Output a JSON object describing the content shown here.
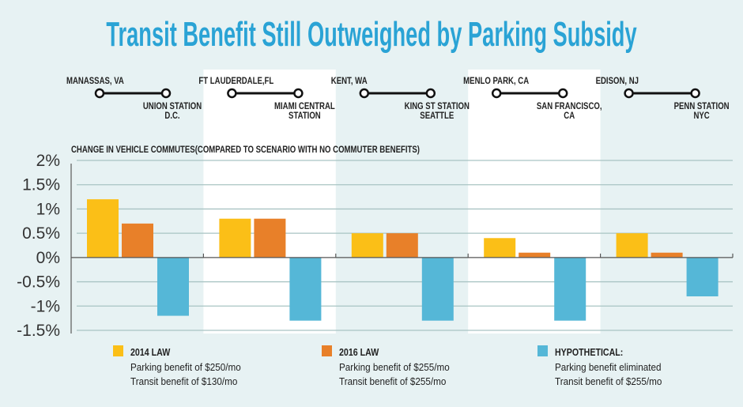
{
  "chart_data": {
    "type": "bar",
    "title": "Transit Benefit Still Outweighed by Parking Subsidy",
    "subtitle": "CHANGE IN VEHICLE COMMUTES(COMPARED TO SCENARIO WITH NO COMMUTER BENEFITS)",
    "ylim": [
      -1.5,
      2
    ],
    "y_ticks": [
      "2%",
      "1.5%",
      "1%",
      "0.5%",
      "0%",
      "-0.5%",
      "-1%",
      "-1.5%"
    ],
    "y_tick_values": [
      2,
      1.5,
      1,
      0.5,
      0,
      -0.5,
      -1,
      -1.5
    ],
    "grid": true,
    "categories": [
      {
        "origin": "MANASSAS, VA",
        "destination": [
          "UNION STATION",
          "D.C."
        ]
      },
      {
        "origin": "FT LAUDERDALE,FL",
        "destination": [
          "MIAMI CENTRAL",
          "STATION"
        ]
      },
      {
        "origin": "KENT, WA",
        "destination": [
          "KING ST STATION",
          "SEATTLE"
        ]
      },
      {
        "origin": "MENLO PARK, CA",
        "destination": [
          "SAN FRANCISCO,",
          "CA"
        ]
      },
      {
        "origin": "EDISON, NJ",
        "destination": [
          "PENN STATION",
          "NYC"
        ]
      }
    ],
    "series": [
      {
        "name": "2014 LAW",
        "details": [
          "Parking benefit of $250/mo",
          "Transit benefit of $130/mo"
        ],
        "color": "#fbbf17",
        "values": [
          1.2,
          0.8,
          0.5,
          0.4,
          0.5
        ]
      },
      {
        "name": "2016 LAW",
        "details": [
          "Parking benefit of $255/mo",
          "Transit benefit of $255/mo"
        ],
        "color": "#e88029",
        "values": [
          0.7,
          0.8,
          0.5,
          0.1,
          0.1
        ]
      },
      {
        "name": "HYPOTHETICAL:",
        "details": [
          "Parking benefit eliminated",
          "Transit benefit of $255/mo"
        ],
        "color": "#55b7d7",
        "values": [
          -1.2,
          -1.3,
          -1.3,
          -1.3,
          -0.8
        ]
      }
    ],
    "legend_position": "bottom",
    "colors": {
      "title": "#2aa3d5",
      "background": "#e7f2f3",
      "band": "#ffffff",
      "grid": "#a9c4c3"
    }
  }
}
